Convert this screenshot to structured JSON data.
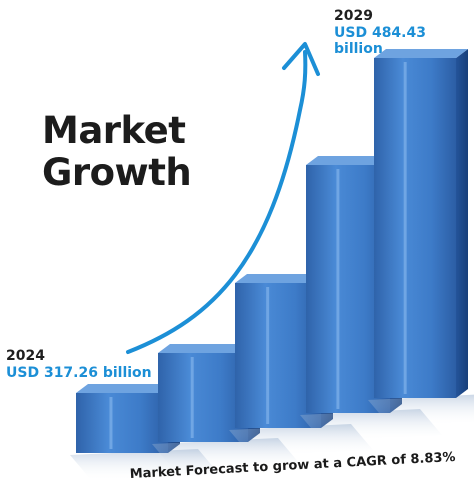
{
  "colors": {
    "accent": "#1c8fd6",
    "bar_front": "#3f7fcb",
    "bar_side": "#2a5fa8",
    "bar_top": "#6ea3e0"
  },
  "headline": {
    "line1": "Market",
    "line2": "Growth"
  },
  "start": {
    "year": "2024",
    "amount": "USD 317.26 billion"
  },
  "end": {
    "year": "2029",
    "amount": "USD 484.43 billion"
  },
  "caption": "Market Forecast to grow at a CAGR of 8.83%",
  "chart_data": {
    "type": "bar",
    "categories": [
      "2024",
      "",
      "",
      "",
      "2029"
    ],
    "values": [
      317.26,
      null,
      null,
      null,
      484.43
    ],
    "annotations": [
      "2024",
      "USD 317.26 billion",
      "2029",
      "USD 484.43 billion",
      "Market Forecast to grow at a CAGR of 8.83%"
    ],
    "trend_arrow": "upward"
  }
}
